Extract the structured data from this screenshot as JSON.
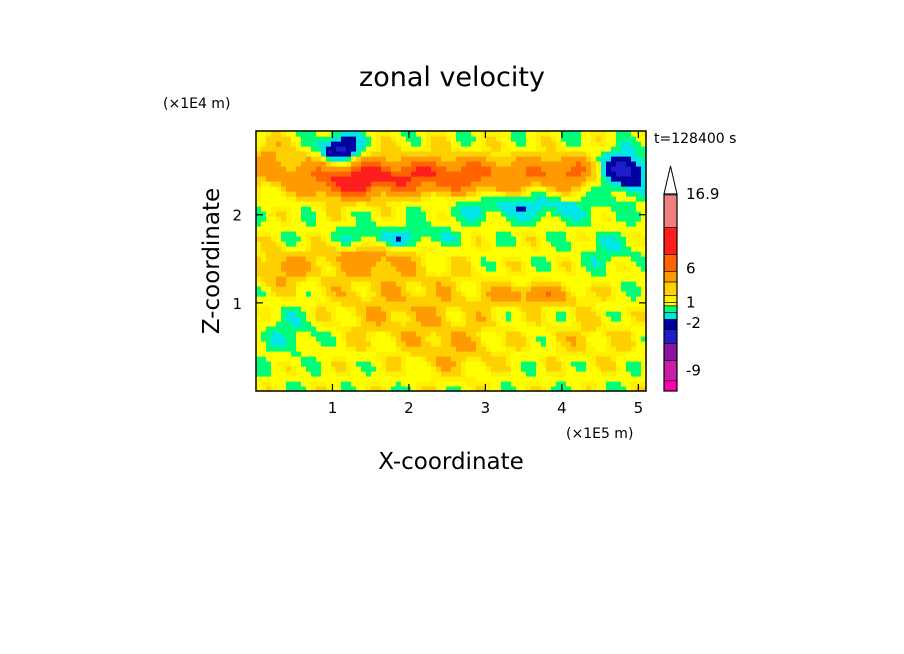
{
  "chart_data": {
    "type": "heatmap",
    "title": "zonal velocity",
    "xlabel": "X-coordinate",
    "ylabel": "Z-coordinate",
    "x_unit": "(×1E5 m)",
    "y_unit": "(×1E4 m)",
    "time_label": "t=128400 s",
    "xlim": [
      0,
      5.1
    ],
    "ylim": [
      0,
      2.95
    ],
    "x_ticks": [
      "1",
      "2",
      "3",
      "4",
      "5"
    ],
    "x_tick_values": [
      1,
      2,
      3,
      4,
      5
    ],
    "y_ticks": [
      "1",
      "2"
    ],
    "y_tick_values": [
      1,
      2
    ],
    "colorbar": {
      "labels": [
        "16.9",
        "6",
        "1",
        "-2",
        "-9"
      ],
      "label_values": [
        16.9,
        6,
        1,
        -2,
        -9
      ],
      "colors": [
        "#ff00b0",
        "#c81eaa",
        "#8c14a0",
        "#1e1ec8",
        "#0000a0",
        "#00e6e6",
        "#00ff78",
        "#ffff00",
        "#fff000",
        "#ffd000",
        "#ff9a00",
        "#ff6400",
        "#ff1e1e",
        "#f08080",
        "#ffc0c0",
        "#ffffff"
      ],
      "levels": [
        -12,
        -10.5,
        -7.5,
        -5,
        -3,
        -1.5,
        -0.5,
        0.5,
        1,
        2,
        4,
        5.5,
        8,
        12,
        16.9,
        20
      ]
    },
    "fields": [
      {
        "x": 2.2,
        "z": 2.45,
        "sx": 1.6,
        "sz": 0.22,
        "a": 5.5
      },
      {
        "x": 1.2,
        "z": 2.35,
        "sx": 0.5,
        "sz": 0.18,
        "a": 3.5
      },
      {
        "x": 4.1,
        "z": 2.5,
        "sx": 0.5,
        "sz": 0.18,
        "a": 3.0
      },
      {
        "x": 4.8,
        "z": 2.5,
        "sx": 0.3,
        "sz": 0.2,
        "a": -7.0
      },
      {
        "x": 1.1,
        "z": 2.75,
        "sx": 0.25,
        "sz": 0.15,
        "a": -6.5
      },
      {
        "x": 3.5,
        "z": 2.1,
        "sx": 1.0,
        "sz": 0.15,
        "a": -2.5
      },
      {
        "x": 1.8,
        "z": 1.75,
        "sx": 0.7,
        "sz": 0.12,
        "a": -2.5
      },
      {
        "x": 1.4,
        "z": 1.5,
        "sx": 0.6,
        "sz": 0.18,
        "a": 2.5
      },
      {
        "x": 3.7,
        "z": 1.1,
        "sx": 0.6,
        "sz": 0.12,
        "a": 3.0
      },
      {
        "x": 0.3,
        "z": 1.4,
        "sx": 0.35,
        "sz": 0.2,
        "a": 2.5
      },
      {
        "x": 1.9,
        "z": 1.0,
        "sx": 1.2,
        "sz": 0.5,
        "a": 1.8
      },
      {
        "x": 2.6,
        "z": 0.45,
        "sx": 0.6,
        "sz": 0.3,
        "a": 1.5
      },
      {
        "x": 4.4,
        "z": 0.6,
        "sx": 0.6,
        "sz": 0.3,
        "a": 1.2
      },
      {
        "x": 0.5,
        "z": 0.7,
        "sx": 0.4,
        "sz": 0.3,
        "a": -1.5
      },
      {
        "x": 4.6,
        "z": 1.6,
        "sx": 0.4,
        "sz": 0.2,
        "a": -1.2
      },
      {
        "x": 0.2,
        "z": 2.6,
        "sx": 0.4,
        "sz": 0.25,
        "a": 2.0
      }
    ]
  }
}
